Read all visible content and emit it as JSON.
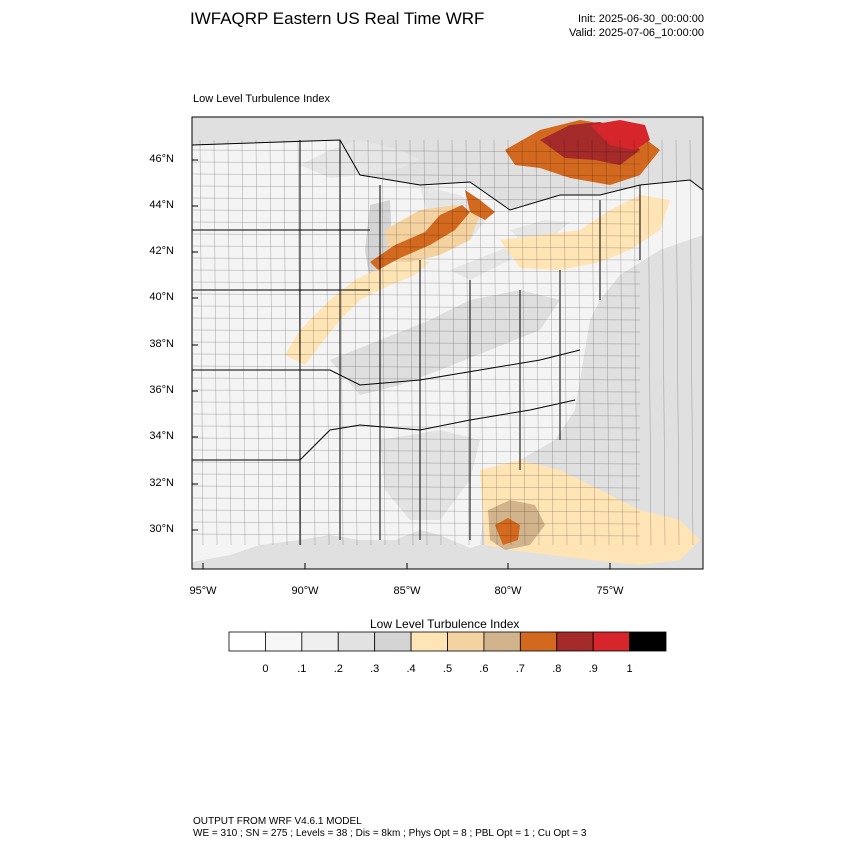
{
  "header": {
    "title": "IWFAQRP Eastern US Real Time WRF",
    "init": "Init: 2025-06-30_00:00:00",
    "valid": "Valid: 2025-07-06_10:00:00"
  },
  "map": {
    "title": "Low Level Turbulence Index",
    "lat_labels": [
      "46°N",
      "44°N",
      "42°N",
      "40°N",
      "38°N",
      "36°N",
      "34°N",
      "32°N",
      "30°N"
    ],
    "lon_labels": [
      "95°W",
      "90°W",
      "85°W",
      "80°W",
      "75°W"
    ],
    "colors": {
      "border": "#000000",
      "land_background": "#f4f4f4",
      "ocean_gray": "#dcdcdc",
      "water": "#e6e6e6"
    }
  },
  "legend": {
    "title": "Low Level Turbulence Index",
    "tick_labels": [
      "0",
      ".1",
      ".2",
      ".3",
      ".4",
      ".5",
      ".6",
      ".7",
      ".8",
      ".9",
      "1"
    ],
    "colors": [
      "#ffffff",
      "#f7f7f7",
      "#efefef",
      "#e2e2e2",
      "#d4d4d4",
      "#ffe4b5",
      "#f5d3a0",
      "#d2b48c",
      "#d2691e",
      "#a52a2a",
      "#d6262b",
      "#000000"
    ]
  },
  "footer": {
    "line1": "OUTPUT FROM WRF V4.6.1 MODEL",
    "line2": "WE = 310 ; SN = 275 ; Levels = 38 ; Dis = 8km ; Phys Opt = 8 ; PBL Opt = 1 ; Cu Opt = 3"
  }
}
